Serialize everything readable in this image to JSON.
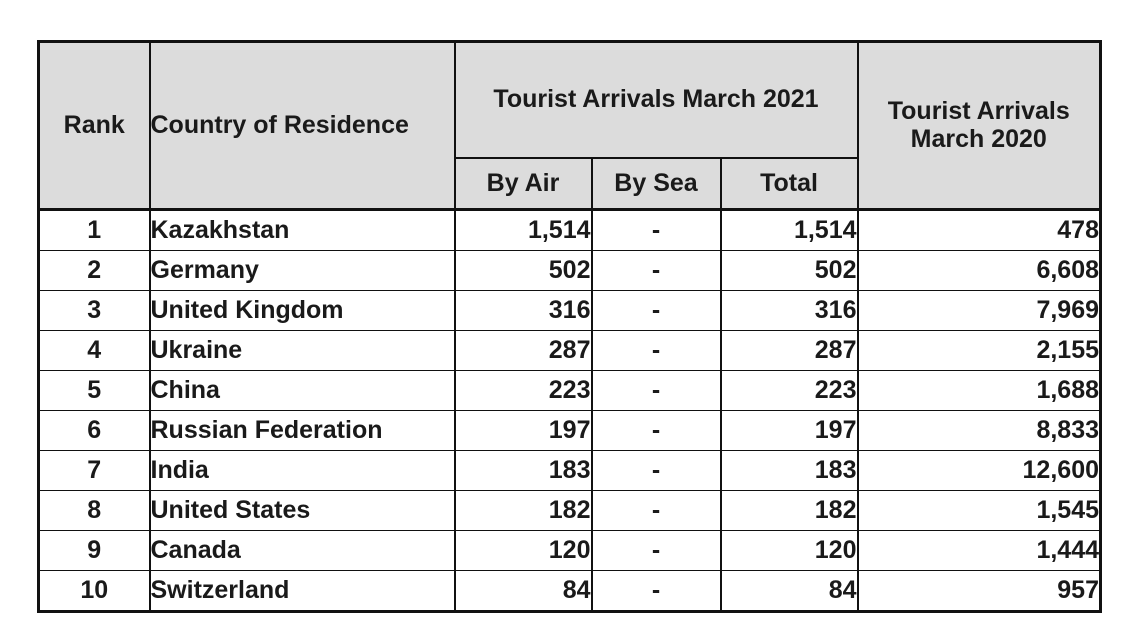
{
  "table": {
    "headers": {
      "rank": "Rank",
      "country": "Country of Residence",
      "arrivals_2021": "Tourist Arrivals March 2021",
      "arrivals_2020": "Tourist Arrivals March 2020",
      "by_air": "By Air",
      "by_sea": "By Sea",
      "total": "Total"
    },
    "rows": [
      {
        "rank": "1",
        "country": "Kazakhstan",
        "by_air": "1,514",
        "by_sea": "-",
        "total": "1,514",
        "arrivals_2020": "478"
      },
      {
        "rank": "2",
        "country": "Germany",
        "by_air": "502",
        "by_sea": "-",
        "total": "502",
        "arrivals_2020": "6,608"
      },
      {
        "rank": "3",
        "country": "United Kingdom",
        "by_air": "316",
        "by_sea": "-",
        "total": "316",
        "arrivals_2020": "7,969"
      },
      {
        "rank": "4",
        "country": "Ukraine",
        "by_air": "287",
        "by_sea": "-",
        "total": "287",
        "arrivals_2020": "2,155"
      },
      {
        "rank": "5",
        "country": "China",
        "by_air": "223",
        "by_sea": "-",
        "total": "223",
        "arrivals_2020": "1,688"
      },
      {
        "rank": "6",
        "country": "Russian Federation",
        "by_air": "197",
        "by_sea": "-",
        "total": "197",
        "arrivals_2020": "8,833"
      },
      {
        "rank": "7",
        "country": "India",
        "by_air": "183",
        "by_sea": "-",
        "total": "183",
        "arrivals_2020": "12,600"
      },
      {
        "rank": "8",
        "country": "United States",
        "by_air": "182",
        "by_sea": "-",
        "total": "182",
        "arrivals_2020": "1,545"
      },
      {
        "rank": "9",
        "country": "Canada",
        "by_air": "120",
        "by_sea": "-",
        "total": "120",
        "arrivals_2020": "1,444"
      },
      {
        "rank": "10",
        "country": "Switzerland",
        "by_air": "84",
        "by_sea": "-",
        "total": "84",
        "arrivals_2020": "957"
      }
    ]
  }
}
